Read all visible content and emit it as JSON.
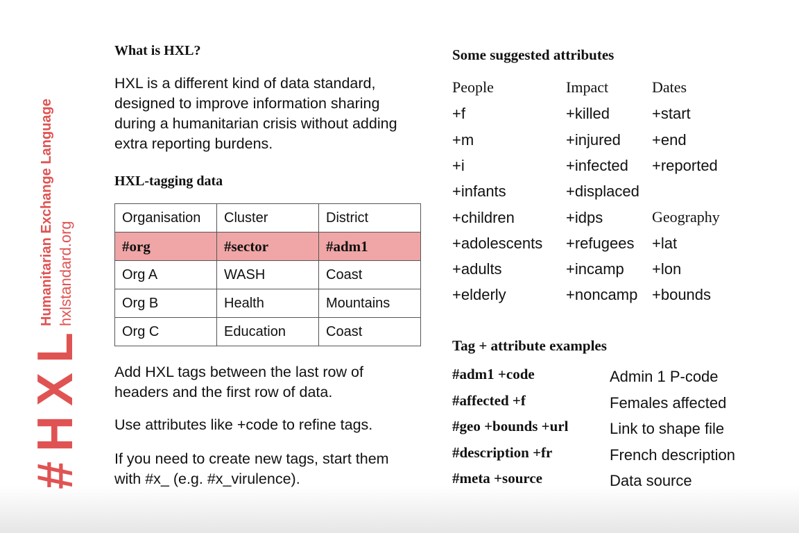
{
  "sidebar": {
    "logo": "#HXL",
    "title": "Humanitarian Exchange Language",
    "url": "hxlstandard.org"
  },
  "left": {
    "what_heading": "What is HXL?",
    "what_text": "HXL is a different kind of data standard, designed to improve information sharing during a humanitarian crisis without adding extra reporting burdens.",
    "tagging_heading": "HXL-tagging data",
    "table": {
      "headers": [
        "Organisation",
        "Cluster",
        "District"
      ],
      "tags": [
        "#org",
        "#sector",
        "#adm1"
      ],
      "rows": [
        [
          "Org A",
          "WASH",
          "Coast"
        ],
        [
          "Org B",
          "Health",
          "Mountains"
        ],
        [
          "Org C",
          "Education",
          "Coast"
        ]
      ]
    },
    "note1": "Add HXL tags between the last row of headers and the first row of data.",
    "note2": "Use attributes like +code to refine tags.",
    "note3": "If you need to create new tags, start them with #x_ (e.g. #x_virulence)."
  },
  "right": {
    "attrs_heading": "Some suggested attributes",
    "people": {
      "heading": "People",
      "items": [
        "+f",
        "+m",
        "+i",
        "+infants",
        "+children",
        "+adolescents",
        "+adults",
        "+elderly"
      ]
    },
    "impact": {
      "heading": "Impact",
      "items": [
        "+killed",
        "+injured",
        "+infected",
        "+displaced",
        "+idps",
        "+refugees",
        "+incamp",
        "+noncamp"
      ]
    },
    "dates": {
      "heading": "Dates",
      "items": [
        "+start",
        "+end",
        "+reported"
      ]
    },
    "geography": {
      "heading": "Geography",
      "items": [
        "+lat",
        "+lon",
        "+bounds"
      ]
    },
    "examples_heading": "Tag + attribute examples",
    "examples": [
      {
        "tag": "#adm1 +code",
        "desc": "Admin 1 P-code"
      },
      {
        "tag": "#affected +f",
        "desc": "Females affected"
      },
      {
        "tag": "#geo +bounds +url",
        "desc": "Link to shape file"
      },
      {
        "tag": "#description +fr",
        "desc": "French description"
      },
      {
        "tag": "#meta +source",
        "desc": "Data source"
      }
    ]
  },
  "colors": {
    "accent": "#e05353",
    "tag_row": "#f0a6a6"
  }
}
